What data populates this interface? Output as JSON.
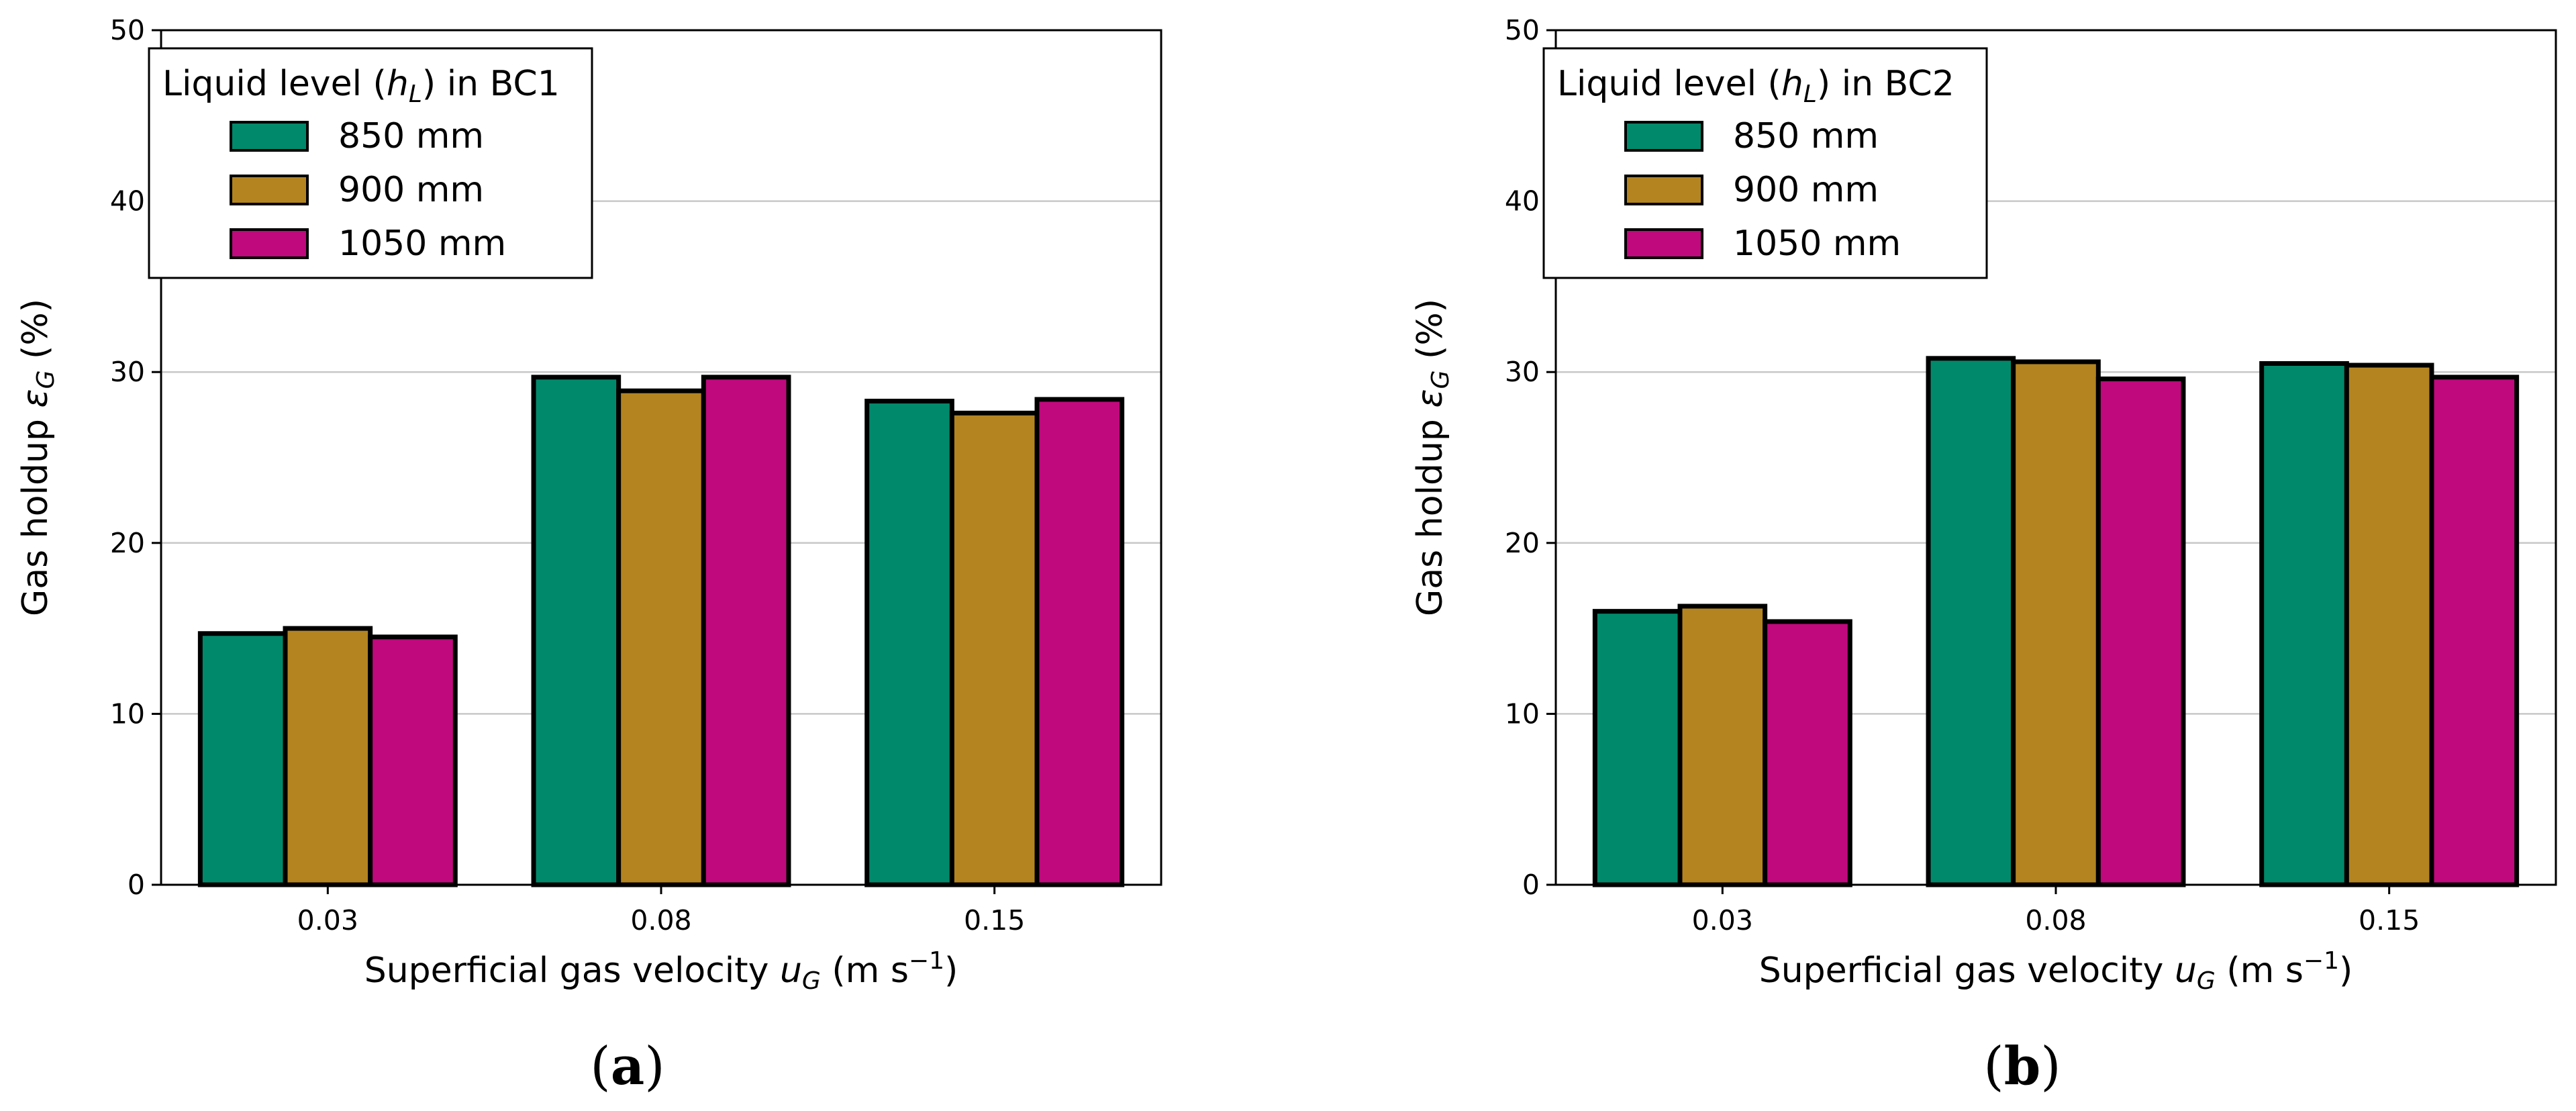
{
  "colors": {
    "series": [
      "#00896B",
      "#B38420",
      "#C0097D"
    ],
    "edge": "#000000",
    "grid": "#C8C8C8"
  },
  "chart_data": [
    {
      "type": "bar",
      "panel_label": "(a)",
      "categories": [
        "0.03",
        "0.08",
        "0.15"
      ],
      "series": [
        {
          "name": "850 mm",
          "values": [
            14.7,
            29.7,
            28.3
          ]
        },
        {
          "name": "900 mm",
          "values": [
            15.0,
            28.9,
            27.6
          ]
        },
        {
          "name": "1050 mm",
          "values": [
            14.5,
            29.7,
            28.4
          ]
        }
      ],
      "ylim": [
        0,
        50
      ],
      "yticks": [
        "0",
        "10",
        "20",
        "30",
        "40",
        "50"
      ],
      "legend": {
        "title_pre": "Liquid level (",
        "title_var": "h",
        "title_sub": "L",
        "title_post": ") in BC1",
        "position": "top-left"
      },
      "ylabel": {
        "pre": "Gas holdup ",
        "var": "ε",
        "sub": "G",
        "post": " (%)"
      },
      "xlabel": {
        "pre": "Superficial gas velocity ",
        "var": "u",
        "sub": "G",
        "unit_pre": " (m s",
        "sup": "−1",
        "unit_post": ")"
      },
      "grid": "y"
    },
    {
      "type": "bar",
      "panel_label": "(b)",
      "categories": [
        "0.03",
        "0.08",
        "0.15"
      ],
      "series": [
        {
          "name": "850 mm",
          "values": [
            16.0,
            30.8,
            30.5
          ]
        },
        {
          "name": "900 mm",
          "values": [
            16.3,
            30.6,
            30.4
          ]
        },
        {
          "name": "1050 mm",
          "values": [
            15.4,
            29.6,
            29.7
          ]
        }
      ],
      "ylim": [
        0,
        50
      ],
      "yticks": [
        "0",
        "10",
        "20",
        "30",
        "40",
        "50"
      ],
      "legend": {
        "title_pre": "Liquid level (",
        "title_var": "h",
        "title_sub": "L",
        "title_post": ") in BC2",
        "position": "top-left"
      },
      "ylabel": {
        "pre": "Gas holdup ",
        "var": "ε",
        "sub": "G",
        "post": " (%)"
      },
      "xlabel": {
        "pre": "Superficial gas velocity ",
        "var": "u",
        "sub": "G",
        "unit_pre": " (m s",
        "sup": "−1",
        "unit_post": ")"
      },
      "grid": "y"
    }
  ]
}
